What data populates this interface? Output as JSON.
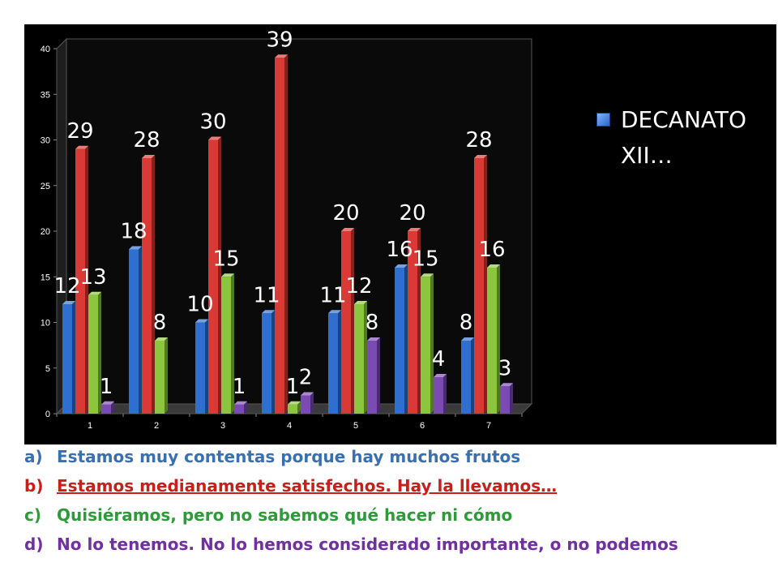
{
  "chart_data": {
    "type": "bar",
    "categories": [
      "1",
      "2",
      "3",
      "4",
      "5",
      "6",
      "7"
    ],
    "series": [
      {
        "name": "DECANATO XII…",
        "color": "#2e6fd0",
        "values": [
          12,
          18,
          10,
          11,
          11,
          16,
          8
        ]
      },
      {
        "color": "#d93a35",
        "values": [
          29,
          28,
          30,
          39,
          20,
          20,
          28
        ]
      },
      {
        "color": "#8cc63e",
        "values": [
          13,
          8,
          15,
          1,
          12,
          15,
          16
        ]
      },
      {
        "color": "#7a4bb3",
        "values": [
          1,
          0,
          1,
          2,
          8,
          4,
          3
        ]
      }
    ],
    "data_labels": [
      [
        "12",
        "18",
        "10",
        "11",
        "11",
        "16",
        "8"
      ],
      [
        "29",
        "28",
        "30",
        "39",
        "20",
        "20",
        "28"
      ],
      [
        "13",
        "8",
        "15",
        "1",
        "12",
        "15",
        "16"
      ],
      [
        "1",
        "",
        "1",
        "2",
        "8",
        "4",
        "3"
      ]
    ],
    "ylim": [
      0,
      40
    ],
    "yticks": [
      "0",
      "5",
      "10",
      "15",
      "20",
      "25",
      "30",
      "35",
      "40"
    ],
    "legend": {
      "position": "right",
      "entries": [
        "DECANATO XII…"
      ]
    },
    "background": "#000000",
    "grid": false,
    "bar_style": "3d"
  },
  "answers": [
    {
      "letter": "a)",
      "text": "Estamos muy contentas porque hay muchos frutos",
      "color": "#3a6fb0",
      "underlined": false
    },
    {
      "letter": "b)",
      "text": "Estamos medianamente satisfechos. Hay la llevamos…",
      "color": "#c81e1e",
      "underlined": true
    },
    {
      "letter": "c)",
      "text": "Quisiéramos, pero no sabemos qué hacer ni cómo",
      "color": "#2e9a3a",
      "underlined": false
    },
    {
      "letter": "d)",
      "text": "No lo tenemos. No lo hemos considerado importante, o no podemos",
      "color": "#7030a0",
      "underlined": false
    }
  ]
}
